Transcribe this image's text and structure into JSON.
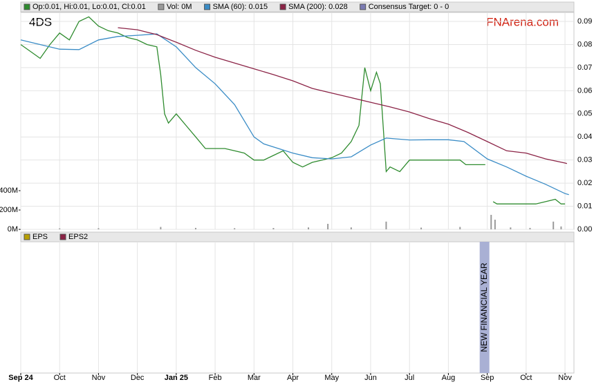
{
  "watermark": "4DS",
  "brand": "FNArena.com",
  "consensus": {
    "name": "Consensus Target: 0 - 0",
    "color": "#7b7bb3"
  },
  "chart_data": {
    "type": "line",
    "xlim": [
      0,
      14.23
    ],
    "xticks": [
      {
        "value": 0,
        "label": "Sep 24"
      },
      {
        "value": 1,
        "label": "Oct"
      },
      {
        "value": 2,
        "label": "Nov"
      },
      {
        "value": 3,
        "label": "Dec"
      },
      {
        "value": 4,
        "label": "Jan 25"
      },
      {
        "value": 5,
        "label": "Feb"
      },
      {
        "value": 6,
        "label": "Mar"
      },
      {
        "value": 7,
        "label": "Apr"
      },
      {
        "value": 8,
        "label": "May"
      },
      {
        "value": 9,
        "label": "Jun"
      },
      {
        "value": 10,
        "label": "Jul"
      },
      {
        "value": 11,
        "label": "Aug"
      },
      {
        "value": 12,
        "label": "Sep"
      },
      {
        "value": 13,
        "label": "Oct"
      },
      {
        "value": 14,
        "label": "Nov"
      }
    ],
    "ylim": [
      0,
      0.0939
    ],
    "yticks": [
      {
        "value": 0,
        "label": "0.00"
      },
      0.01,
      0.02,
      0.03,
      0.04,
      0.05,
      0.06,
      0.07,
      0.08,
      0.09
    ],
    "y2lim": [
      0,
      2243
    ],
    "y2ticks": [
      {
        "value": 0,
        "label": "0M"
      },
      {
        "value": 200,
        "label": "200M"
      },
      {
        "value": 400,
        "label": "400M"
      }
    ],
    "grid": true,
    "series": [
      {
        "name": "Op:0.01, Hi:0.01, Lo:0.01, Cl:0.01",
        "color": "#2e8b2e",
        "x": [
          0,
          0.25,
          0.5,
          0.75,
          1,
          1.25,
          1.5,
          1.75,
          2,
          2.25,
          2.5,
          2.75,
          3,
          3.25,
          3.5,
          3.6,
          3.7,
          3.8,
          4,
          4.25,
          4.5,
          4.75,
          5,
          5.25,
          5.5,
          5.75,
          6,
          6.25,
          6.5,
          6.75,
          7,
          7.25,
          7.5,
          7.75,
          8,
          8.25,
          8.5,
          8.7,
          8.85,
          9,
          9.15,
          9.25,
          9.4,
          9.5,
          9.75,
          10,
          10.25,
          10.5,
          10.75,
          11,
          11.3,
          11.45,
          11.75,
          11.95,
          12.05,
          12.15,
          12.25,
          12.5,
          12.75,
          13,
          13.25,
          13.5,
          13.75,
          13.9,
          14
        ],
        "values": [
          0.08,
          0.077,
          0.074,
          0.08,
          0.085,
          0.082,
          0.09,
          0.092,
          0.088,
          0.086,
          0.085,
          0.083,
          0.082,
          0.08,
          0.079,
          0.067,
          0.05,
          0.046,
          0.05,
          0.045,
          0.04,
          0.035,
          0.035,
          0.035,
          0.034,
          0.033,
          0.03,
          0.03,
          0.032,
          0.034,
          0.029,
          0.027,
          0.029,
          0.03,
          0.031,
          0.033,
          0.038,
          0.045,
          0.07,
          0.06,
          0.068,
          0.063,
          0.025,
          0.027,
          0.025,
          0.03,
          0.03,
          0.03,
          0.03,
          0.03,
          0.03,
          0.028,
          0.028,
          0.028,
          null,
          0.012,
          0.011,
          0.011,
          0.011,
          0.011,
          0.011,
          0.012,
          0.013,
          0.011,
          0.011
        ]
      },
      {
        "name": "Vol: 0M",
        "color": "#9a9a9a",
        "axis": "y2",
        "type": "bar",
        "x": [
          1,
          2,
          3.6,
          4.5,
          5.5,
          6.5,
          7.4,
          7.9,
          8.5,
          9.4,
          10.3,
          11.3,
          12.1,
          12.2,
          12.6,
          13.1,
          13.7,
          13.9
        ],
        "values": [
          10,
          12,
          25,
          15,
          12,
          14,
          20,
          57,
          20,
          80,
          18,
          25,
          150,
          100,
          20,
          15,
          80,
          30
        ]
      },
      {
        "name": "SMA (60): 0.015",
        "color": "#3a8cc6",
        "x": [
          0,
          0.5,
          1,
          1.5,
          2,
          2.5,
          3,
          3.5,
          4,
          4.5,
          5,
          5.5,
          6,
          6.25,
          7,
          7.5,
          8,
          8.5,
          9,
          9.4,
          10,
          10.5,
          11,
          11.4,
          12,
          12.5,
          13,
          13.5,
          14,
          14.1
        ],
        "values": [
          0.082,
          0.08,
          0.078,
          0.0778,
          0.082,
          0.0835,
          0.084,
          0.0846,
          0.079,
          0.07,
          0.063,
          0.054,
          0.04,
          0.037,
          0.033,
          0.031,
          0.0305,
          0.0314,
          0.0365,
          0.0395,
          0.0387,
          0.0388,
          0.0388,
          0.038,
          0.0305,
          0.027,
          0.023,
          0.0195,
          0.0155,
          0.015
        ]
      },
      {
        "name": "SMA (200): 0.028",
        "color": "#8b2346",
        "x": [
          2.5,
          3,
          3.5,
          4,
          4.5,
          5,
          5.5,
          6,
          6.5,
          7,
          7.5,
          8,
          8.5,
          9,
          9.5,
          10,
          10.5,
          11,
          11.5,
          12,
          12.5,
          13,
          13.5,
          14,
          14.05
        ],
        "values": [
          0.0873,
          0.0864,
          0.0843,
          0.081,
          0.0775,
          0.0745,
          0.072,
          0.0695,
          0.067,
          0.0643,
          0.061,
          0.059,
          0.057,
          0.055,
          0.053,
          0.0508,
          0.048,
          0.0455,
          0.042,
          0.038,
          0.034,
          0.033,
          0.0305,
          0.0287,
          0.0285
        ]
      }
    ],
    "lower_legend": [
      {
        "name": "EPS",
        "color": "#b8a000"
      },
      {
        "name": "EPS2",
        "color": "#8b2346"
      }
    ],
    "annotation": {
      "text": "NEW FINANCIAL YEAR",
      "x": 11.93
    }
  }
}
